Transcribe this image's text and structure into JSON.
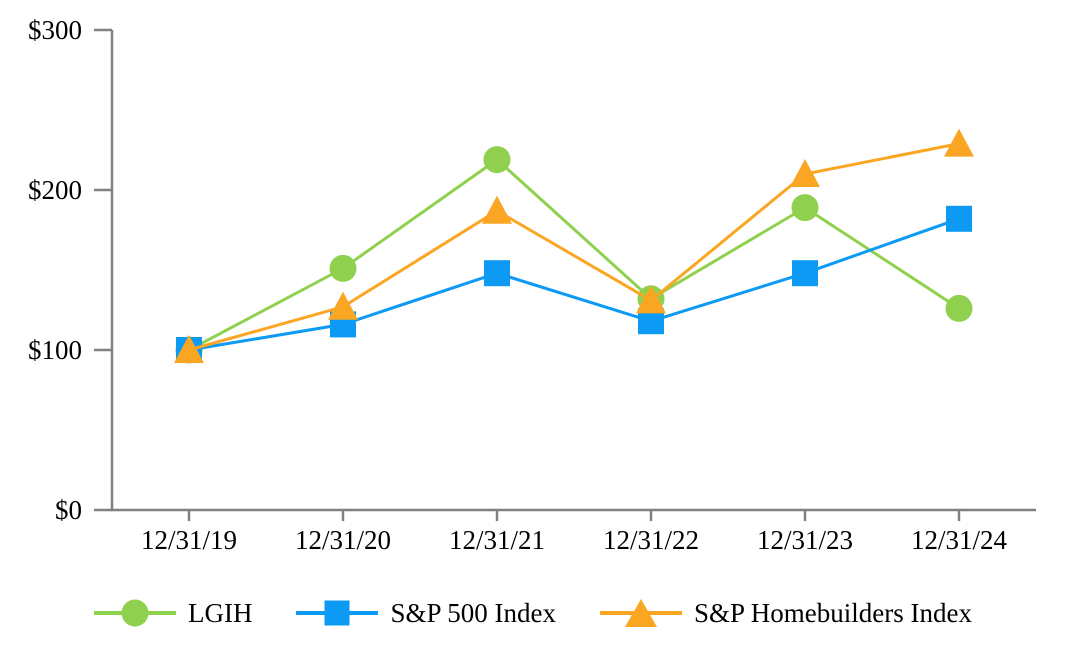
{
  "chart_data": {
    "type": "line",
    "categories": [
      "12/31/19",
      "12/31/20",
      "12/31/21",
      "12/31/22",
      "12/31/23",
      "12/31/24"
    ],
    "series": [
      {
        "name": "LGIH",
        "marker": "circle",
        "color": "#8FD14F",
        "values": [
          100,
          151,
          219,
          132,
          189,
          126
        ]
      },
      {
        "name": "S&P 500 Index",
        "marker": "square",
        "color": "#0C9AF5",
        "values": [
          100,
          116,
          148,
          118,
          148,
          182
        ]
      },
      {
        "name": "S&P Homebuilders Index",
        "marker": "triangle",
        "color": "#FAA623",
        "values": [
          100,
          127,
          187,
          131,
          210,
          229
        ]
      }
    ],
    "ylim": [
      0,
      300
    ],
    "yticks": [
      {
        "value": 0,
        "label": "$0"
      },
      {
        "value": 100,
        "label": "$100"
      },
      {
        "value": 200,
        "label": "$200"
      },
      {
        "value": 300,
        "label": "$300"
      }
    ],
    "grid": false,
    "legend_position": "bottom",
    "axis_color": "#808080",
    "text_color": "#000000"
  }
}
